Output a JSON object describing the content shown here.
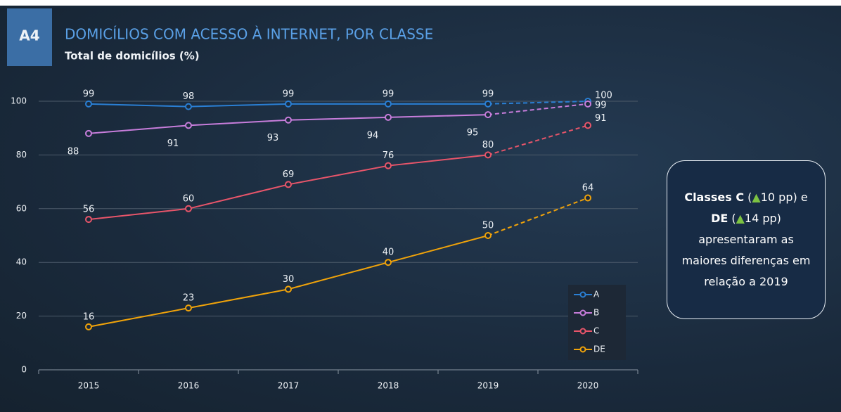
{
  "chart_data": {
    "type": "line",
    "badge": "A4",
    "title": "DOMICÍLIOS COM ACESSO À INTERNET, POR CLASSE",
    "subtitle": "Total de domicílios (%)",
    "categories": [
      "2015",
      "2016",
      "2017",
      "2018",
      "2019",
      "2020"
    ],
    "series": [
      {
        "name": "A",
        "color": "#2a7fd4",
        "values": [
          99,
          98,
          99,
          99,
          99,
          100
        ]
      },
      {
        "name": "B",
        "color": "#c77ddb",
        "values": [
          88,
          91,
          93,
          94,
          95,
          99
        ]
      },
      {
        "name": "C",
        "color": "#e8556a",
        "values": [
          56,
          60,
          69,
          76,
          80,
          91
        ]
      },
      {
        "name": "DE",
        "color": "#f0a30a",
        "values": [
          16,
          23,
          30,
          40,
          50,
          64
        ]
      }
    ],
    "ylim": [
      0,
      100
    ],
    "yticks": [
      0,
      20,
      40,
      60,
      80,
      100
    ],
    "grid": true,
    "legend": "lower right",
    "annotation": [
      {
        "text": "Classes C",
        "bold": true
      },
      {
        "text": " ("
      },
      {
        "text": "▲",
        "color": "#7cc242"
      },
      {
        "text": "10 pp) e "
      },
      {
        "text": "DE",
        "bold": true
      },
      {
        "text": " ("
      },
      {
        "text": "▲",
        "color": "#7cc242"
      },
      {
        "text": "14 pp) apresentaram as maiores diferenças em relação a 2019"
      }
    ]
  }
}
